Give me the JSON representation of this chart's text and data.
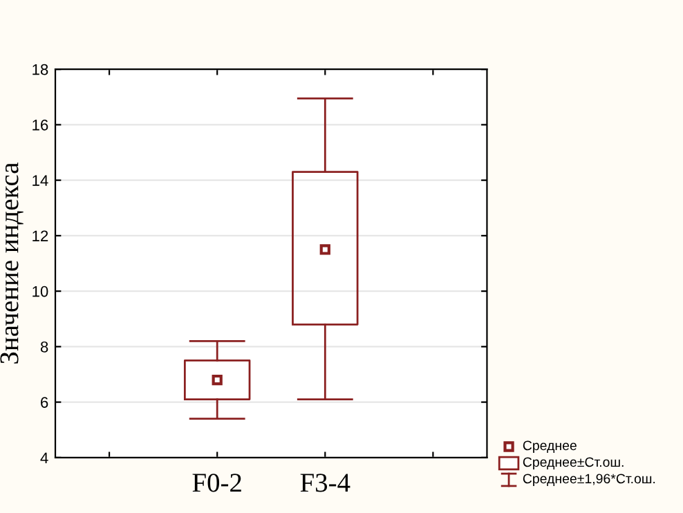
{
  "chart_data": {
    "type": "box",
    "ylabel": "Значение индекса",
    "categories": [
      null,
      "F0-2",
      "F3-4",
      null
    ],
    "boxes": [
      null,
      {
        "low": 5.4,
        "q1": 6.1,
        "median": 6.8,
        "q3": 7.5,
        "high": 8.2
      },
      {
        "low": 6.1,
        "q1": 8.8,
        "median": 11.5,
        "q3": 14.3,
        "high": 16.95
      },
      null
    ],
    "color": "#8b2020",
    "ylim": [
      4,
      18
    ],
    "yticks": [
      4,
      6,
      8,
      10,
      12,
      14,
      16,
      18
    ],
    "grid": "y",
    "marker": "square",
    "annotations": [
      "Среднее",
      "Среднее±Ст.ош.",
      "Среднее±1,96*Ст.ош."
    ]
  }
}
